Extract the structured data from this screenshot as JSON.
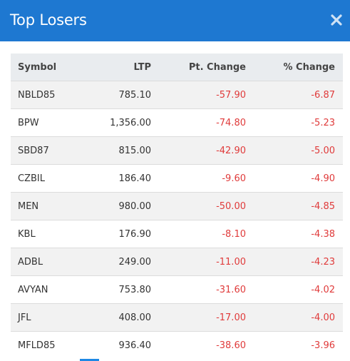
{
  "header": {
    "title": "Top Losers",
    "close_icon": "close-icon",
    "background_color": "#1e78d1"
  },
  "table": {
    "columns": [
      "Symbol",
      "LTP",
      "Pt. Change",
      "% Change"
    ],
    "negative_color": "#e03b3b",
    "rows": [
      {
        "symbol": "NBLD85",
        "ltp": "785.10",
        "pt_change": "-57.90",
        "pct_change": "-6.87"
      },
      {
        "symbol": "BPW",
        "ltp": "1,356.00",
        "pt_change": "-74.80",
        "pct_change": "-5.23"
      },
      {
        "symbol": "SBD87",
        "ltp": "815.00",
        "pt_change": "-42.90",
        "pct_change": "-5.00"
      },
      {
        "symbol": "CZBIL",
        "ltp": "186.40",
        "pt_change": "-9.60",
        "pct_change": "-4.90"
      },
      {
        "symbol": "MEN",
        "ltp": "980.00",
        "pt_change": "-50.00",
        "pct_change": "-4.85"
      },
      {
        "symbol": "KBL",
        "ltp": "176.90",
        "pt_change": "-8.10",
        "pct_change": "-4.38"
      },
      {
        "symbol": "ADBL",
        "ltp": "249.00",
        "pt_change": "-11.00",
        "pct_change": "-4.23"
      },
      {
        "symbol": "AVYAN",
        "ltp": "753.80",
        "pt_change": "-31.60",
        "pct_change": "-4.02"
      },
      {
        "symbol": "JFL",
        "ltp": "408.00",
        "pt_change": "-17.00",
        "pct_change": "-4.00"
      },
      {
        "symbol": "MFLD85",
        "ltp": "936.40",
        "pt_change": "-38.60",
        "pct_change": "-3.96"
      }
    ]
  }
}
